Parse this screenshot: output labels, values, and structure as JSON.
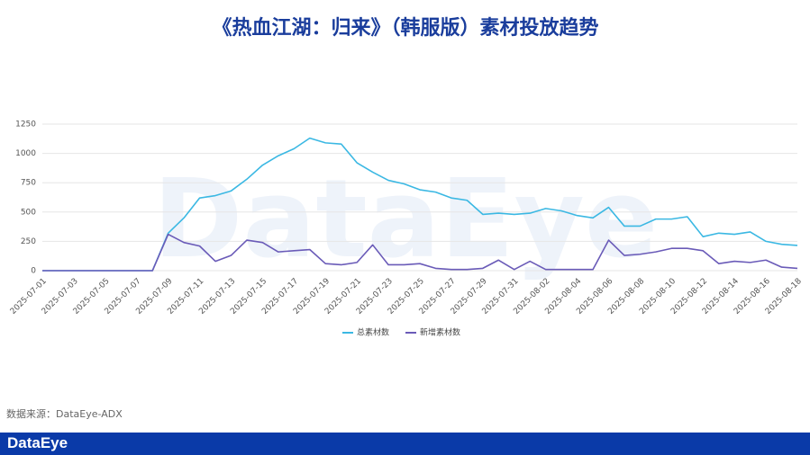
{
  "chart_data": {
    "type": "line",
    "title": "《热血江湖：归来》（韩服版）素材投放趋势",
    "categories": [
      "2025-07-01",
      null,
      "2025-07-03",
      null,
      "2025-07-05",
      null,
      "2025-07-07",
      null,
      "2025-07-09",
      null,
      "2025-07-11",
      null,
      "2025-07-13",
      null,
      "2025-07-15",
      null,
      "2025-07-17",
      null,
      "2025-07-19",
      null,
      "2025-07-21",
      null,
      "2025-07-23",
      null,
      "2025-07-25",
      null,
      "2025-07-27",
      null,
      "2025-07-29",
      null,
      "2025-07-31",
      null,
      "2025-08-02",
      null,
      "2025-08-04",
      null,
      "2025-08-06",
      null,
      "2025-08-08",
      null,
      "2025-08-10",
      null,
      "2025-08-12",
      null,
      "2025-08-14",
      null,
      "2025-08-16",
      null,
      "2025-08-18"
    ],
    "series": [
      {
        "name": "总素材数",
        "color": "#3bb8e3",
        "values": [
          0,
          0,
          0,
          0,
          0,
          0,
          0,
          0,
          320,
          450,
          620,
          640,
          680,
          780,
          900,
          980,
          1040,
          1130,
          1090,
          1080,
          920,
          840,
          770,
          740,
          690,
          670,
          620,
          600,
          480,
          490,
          480,
          490,
          530,
          510,
          470,
          450,
          540,
          380,
          380,
          440,
          440,
          460,
          290,
          320,
          310,
          330,
          250,
          225,
          215
        ]
      },
      {
        "name": "新增素材数",
        "color": "#6a5bb8",
        "values": [
          0,
          0,
          0,
          0,
          0,
          0,
          0,
          0,
          310,
          240,
          210,
          80,
          130,
          260,
          240,
          160,
          170,
          180,
          60,
          50,
          70,
          220,
          50,
          50,
          60,
          20,
          10,
          10,
          20,
          90,
          10,
          80,
          10,
          10,
          10,
          10,
          260,
          130,
          140,
          160,
          190,
          190,
          170,
          60,
          80,
          70,
          90,
          30,
          20
        ]
      }
    ],
    "ylim": [
      0,
      1250
    ],
    "yticks": [
      0,
      250,
      500,
      750,
      1000,
      1250
    ],
    "grid": true,
    "legend": "bottom"
  },
  "source": "数据来源：DataEye-ADX",
  "brand": "DataEye"
}
